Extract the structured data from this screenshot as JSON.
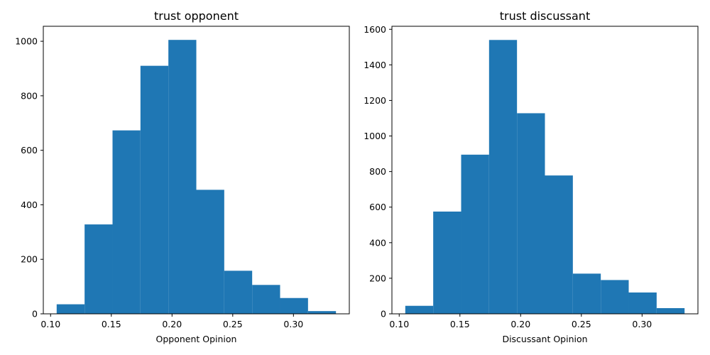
{
  "colors": {
    "bar": "#1f77b4"
  },
  "chart_data": [
    {
      "type": "bar",
      "title": "trust opponent",
      "xlabel": "Opponent Opinion",
      "ylabel": "",
      "bin_edges": [
        0.105,
        0.128,
        0.151,
        0.174,
        0.197,
        0.22,
        0.243,
        0.266,
        0.289,
        0.312,
        0.335
      ],
      "values": [
        35,
        328,
        673,
        910,
        1005,
        455,
        158,
        106,
        58,
        10
      ],
      "xlim": [
        0.094,
        0.346
      ],
      "ylim": [
        0,
        1055
      ],
      "xticks": [
        0.1,
        0.15,
        0.2,
        0.25,
        0.3
      ],
      "xtick_labels": [
        "0.10",
        "0.15",
        "0.20",
        "0.25",
        "0.30"
      ],
      "yticks": [
        0,
        200,
        400,
        600,
        800,
        1000
      ],
      "ytick_labels": [
        "0",
        "200",
        "400",
        "600",
        "800",
        "1000"
      ],
      "grid": false
    },
    {
      "type": "bar",
      "title": "trust discussant",
      "xlabel": "Discussant Opinion",
      "ylabel": "",
      "bin_edges": [
        0.105,
        0.128,
        0.151,
        0.174,
        0.197,
        0.22,
        0.243,
        0.266,
        0.289,
        0.312,
        0.335
      ],
      "values": [
        45,
        575,
        895,
        1540,
        1128,
        778,
        226,
        190,
        120,
        32
      ],
      "xlim": [
        0.094,
        0.346
      ],
      "ylim": [
        0,
        1617
      ],
      "xticks": [
        0.1,
        0.15,
        0.2,
        0.25,
        0.3
      ],
      "xtick_labels": [
        "0.10",
        "0.15",
        "0.20",
        "0.25",
        "0.30"
      ],
      "yticks": [
        0,
        200,
        400,
        600,
        800,
        1000,
        1200,
        1400,
        1600
      ],
      "ytick_labels": [
        "0",
        "200",
        "400",
        "600",
        "800",
        "1000",
        "1200",
        "1400",
        "1600"
      ],
      "grid": false
    }
  ]
}
